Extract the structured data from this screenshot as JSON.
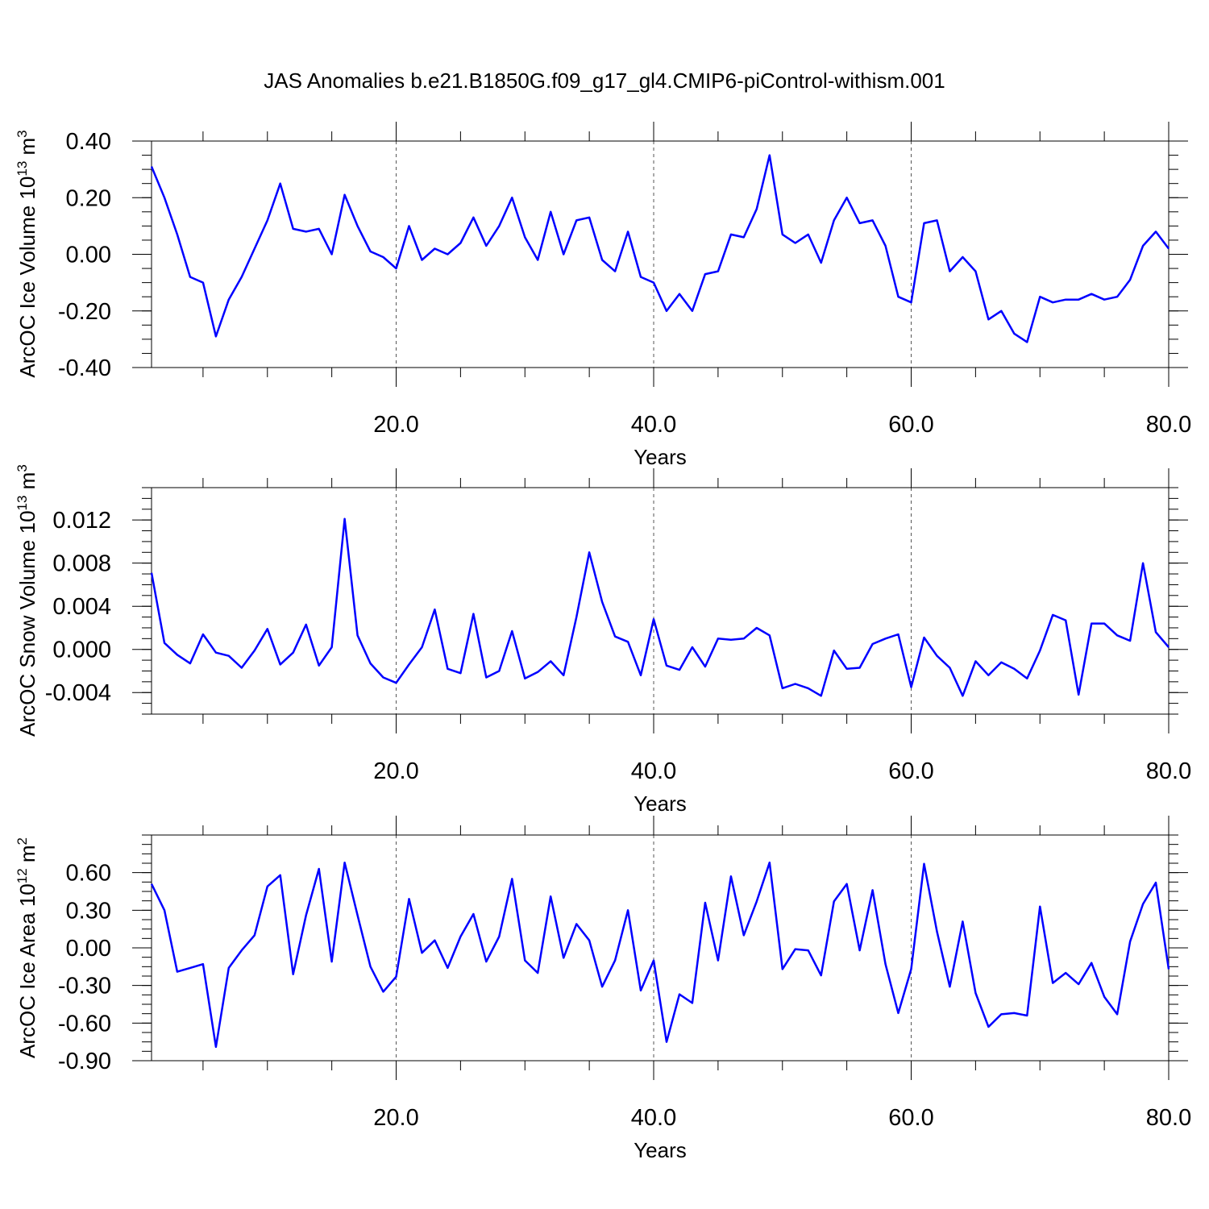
{
  "title": "JAS Anomalies b.e21.B1850G.f09_g17_gl4.CMIP6-piControl-withism.001",
  "line_color": "#0000ff",
  "chart_data": [
    {
      "type": "line",
      "ylabel": "ArcOC Ice Volume 10",
      "ylabel_exp": "13",
      "ylabel_unit": " m",
      "ylabel_unit_exp": "3",
      "xlabel": "Years",
      "xlim": [
        1,
        80
      ],
      "ylim": [
        -0.4,
        0.4
      ],
      "xticks": [
        20,
        40,
        60,
        80
      ],
      "xtick_labels": [
        "20.0",
        "40.0",
        "60.0",
        "80.0"
      ],
      "yticks": [
        -0.4,
        -0.2,
        0.0,
        0.2,
        0.4
      ],
      "ytick_labels": [
        "-0.40",
        "-0.20",
        "0.00",
        "0.20",
        "0.40"
      ],
      "grid_x": [
        20,
        40,
        60
      ],
      "x": [
        1,
        2,
        3,
        4,
        5,
        6,
        7,
        8,
        9,
        10,
        11,
        12,
        13,
        14,
        15,
        16,
        17,
        18,
        19,
        20,
        21,
        22,
        23,
        24,
        25,
        26,
        27,
        28,
        29,
        30,
        31,
        32,
        33,
        34,
        35,
        36,
        37,
        38,
        39,
        40,
        41,
        42,
        43,
        44,
        45,
        46,
        47,
        48,
        49,
        50,
        51,
        52,
        53,
        54,
        55,
        56,
        57,
        58,
        59,
        60,
        61,
        62,
        63,
        64,
        65,
        66,
        67,
        68,
        69,
        70,
        71,
        72,
        73,
        74,
        75,
        76,
        77,
        78,
        79,
        80
      ],
      "values": [
        0.31,
        0.2,
        0.07,
        -0.08,
        -0.1,
        -0.29,
        -0.16,
        -0.08,
        0.02,
        0.12,
        0.25,
        0.09,
        0.08,
        0.09,
        0.0,
        0.21,
        0.1,
        0.01,
        -0.01,
        -0.05,
        0.1,
        -0.02,
        0.02,
        0.0,
        0.04,
        0.13,
        0.03,
        0.1,
        0.2,
        0.06,
        -0.02,
        0.15,
        0.0,
        0.12,
        0.13,
        -0.02,
        -0.06,
        0.08,
        -0.08,
        -0.1,
        -0.2,
        -0.14,
        -0.2,
        -0.07,
        -0.06,
        0.07,
        0.06,
        0.16,
        0.35,
        0.07,
        0.04,
        0.07,
        -0.03,
        0.12,
        0.2,
        0.11,
        0.12,
        0.03,
        -0.15,
        -0.17,
        0.11,
        0.12,
        -0.06,
        -0.01,
        -0.06,
        -0.23,
        -0.2,
        -0.28,
        -0.31,
        -0.15,
        -0.17,
        -0.16,
        -0.16,
        -0.14,
        -0.16,
        -0.15,
        -0.09,
        0.03,
        0.08,
        0.02
      ]
    },
    {
      "type": "line",
      "ylabel": "ArcOC Snow Volume 10",
      "ylabel_exp": "13",
      "ylabel_unit": " m",
      "ylabel_unit_exp": "3",
      "xlabel": "Years",
      "xlim": [
        1,
        80
      ],
      "ylim": [
        -0.006,
        0.015
      ],
      "xticks": [
        20,
        40,
        60,
        80
      ],
      "xtick_labels": [
        "20.0",
        "40.0",
        "60.0",
        "80.0"
      ],
      "yticks": [
        -0.004,
        0.0,
        0.004,
        0.008,
        0.012
      ],
      "ytick_labels": [
        "-0.004",
        "0.000",
        "0.004",
        "0.008",
        "0.012"
      ],
      "grid_x": [
        20,
        40,
        60
      ],
      "x": [
        1,
        2,
        3,
        4,
        5,
        6,
        7,
        8,
        9,
        10,
        11,
        12,
        13,
        14,
        15,
        16,
        17,
        18,
        19,
        20,
        21,
        22,
        23,
        24,
        25,
        26,
        27,
        28,
        29,
        30,
        31,
        32,
        33,
        34,
        35,
        36,
        37,
        38,
        39,
        40,
        41,
        42,
        43,
        44,
        45,
        46,
        47,
        48,
        49,
        50,
        51,
        52,
        53,
        54,
        55,
        56,
        57,
        58,
        59,
        60,
        61,
        62,
        63,
        64,
        65,
        66,
        67,
        68,
        69,
        70,
        71,
        72,
        73,
        74,
        75,
        76,
        77,
        78,
        79,
        80
      ],
      "values": [
        0.0071,
        0.0006,
        -0.0005,
        -0.0013,
        0.0014,
        -0.0003,
        -0.0006,
        -0.0017,
        -0.0001,
        0.0019,
        -0.0014,
        -0.0003,
        0.0023,
        -0.0015,
        0.0002,
        0.0121,
        0.0013,
        -0.0013,
        -0.0026,
        -0.0031,
        -0.0014,
        0.0002,
        0.0037,
        -0.0018,
        -0.0022,
        0.0033,
        -0.0026,
        -0.002,
        0.0017,
        -0.0027,
        -0.0021,
        -0.0011,
        -0.0024,
        0.003,
        0.009,
        0.0044,
        0.0012,
        0.0007,
        -0.0024,
        0.0028,
        -0.0015,
        -0.0019,
        0.0002,
        -0.0016,
        0.001,
        0.0009,
        0.001,
        0.002,
        0.0013,
        -0.0036,
        -0.0032,
        -0.0036,
        -0.0043,
        -0.0001,
        -0.0018,
        -0.0017,
        0.0005,
        0.001,
        0.0014,
        -0.0035,
        0.0011,
        -0.0006,
        -0.0017,
        -0.0043,
        -0.0011,
        -0.0024,
        -0.0012,
        -0.0018,
        -0.0027,
        -0.0001,
        0.0032,
        0.0027,
        -0.0042,
        0.0024,
        0.0024,
        0.0013,
        0.0008,
        0.008,
        0.0016,
        0.0002
      ]
    },
    {
      "type": "line",
      "ylabel": "ArcOC Ice Area 10",
      "ylabel_exp": "12",
      "ylabel_unit": " m",
      "ylabel_unit_exp": "2",
      "xlabel": "Years",
      "xlim": [
        1,
        80
      ],
      "ylim": [
        -0.9,
        0.9
      ],
      "xticks": [
        20,
        40,
        60,
        80
      ],
      "xtick_labels": [
        "20.0",
        "40.0",
        "60.0",
        "80.0"
      ],
      "yticks": [
        -0.9,
        -0.6,
        -0.3,
        0.0,
        0.3,
        0.6
      ],
      "ytick_labels": [
        "-0.90",
        "-0.60",
        "-0.30",
        "0.00",
        "0.30",
        "0.60"
      ],
      "grid_x": [
        20,
        40,
        60
      ],
      "x": [
        1,
        2,
        3,
        4,
        5,
        6,
        7,
        8,
        9,
        10,
        11,
        12,
        13,
        14,
        15,
        16,
        17,
        18,
        19,
        20,
        21,
        22,
        23,
        24,
        25,
        26,
        27,
        28,
        29,
        30,
        31,
        32,
        33,
        34,
        35,
        36,
        37,
        38,
        39,
        40,
        41,
        42,
        43,
        44,
        45,
        46,
        47,
        48,
        49,
        50,
        51,
        52,
        53,
        54,
        55,
        56,
        57,
        58,
        59,
        60,
        61,
        62,
        63,
        64,
        65,
        66,
        67,
        68,
        69,
        70,
        71,
        72,
        73,
        74,
        75,
        76,
        77,
        78,
        79,
        80
      ],
      "values": [
        0.51,
        0.3,
        -0.19,
        -0.16,
        -0.13,
        -0.79,
        -0.16,
        -0.02,
        0.1,
        0.49,
        0.58,
        -0.21,
        0.26,
        0.63,
        -0.11,
        0.68,
        0.26,
        -0.15,
        -0.35,
        -0.23,
        0.39,
        -0.04,
        0.06,
        -0.16,
        0.09,
        0.27,
        -0.11,
        0.09,
        0.55,
        -0.1,
        -0.2,
        0.41,
        -0.08,
        0.19,
        0.06,
        -0.31,
        -0.1,
        0.3,
        -0.34,
        -0.1,
        -0.75,
        -0.37,
        -0.44,
        0.36,
        -0.1,
        0.57,
        0.1,
        0.37,
        0.68,
        -0.17,
        -0.01,
        -0.02,
        -0.22,
        0.37,
        0.51,
        -0.02,
        0.46,
        -0.13,
        -0.52,
        -0.17,
        0.67,
        0.13,
        -0.31,
        0.21,
        -0.36,
        -0.63,
        -0.53,
        -0.52,
        -0.54,
        0.33,
        -0.28,
        -0.2,
        -0.29,
        -0.12,
        -0.39,
        -0.53,
        0.05,
        0.35,
        0.52,
        -0.17
      ]
    }
  ]
}
